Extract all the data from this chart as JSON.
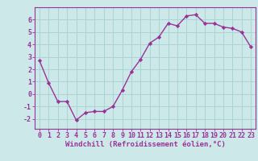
{
  "x": [
    0,
    1,
    2,
    3,
    4,
    5,
    6,
    7,
    8,
    9,
    10,
    11,
    12,
    13,
    14,
    15,
    16,
    17,
    18,
    19,
    20,
    21,
    22,
    23
  ],
  "y": [
    2.7,
    0.9,
    -0.6,
    -0.6,
    -2.1,
    -1.5,
    -1.4,
    -1.4,
    -1.0,
    0.3,
    1.8,
    2.8,
    4.1,
    4.6,
    5.7,
    5.5,
    6.3,
    6.4,
    5.7,
    5.7,
    5.4,
    5.3,
    5.0,
    3.8
  ],
  "line_color": "#993399",
  "marker": "D",
  "marker_size": 2.2,
  "bg_color": "#cce8e8",
  "grid_color": "#aad4d4",
  "xlabel": "Windchill (Refroidissement éolien,°C)",
  "xlim": [
    -0.5,
    23.5
  ],
  "ylim": [
    -2.8,
    7.0
  ],
  "yticks": [
    -2,
    -1,
    0,
    1,
    2,
    3,
    4,
    5,
    6
  ],
  "xticks": [
    0,
    1,
    2,
    3,
    4,
    5,
    6,
    7,
    8,
    9,
    10,
    11,
    12,
    13,
    14,
    15,
    16,
    17,
    18,
    19,
    20,
    21,
    22,
    23
  ],
  "tick_color": "#993399",
  "label_fontsize": 6.5,
  "tick_fontsize": 6.0,
  "line_width": 1.0
}
